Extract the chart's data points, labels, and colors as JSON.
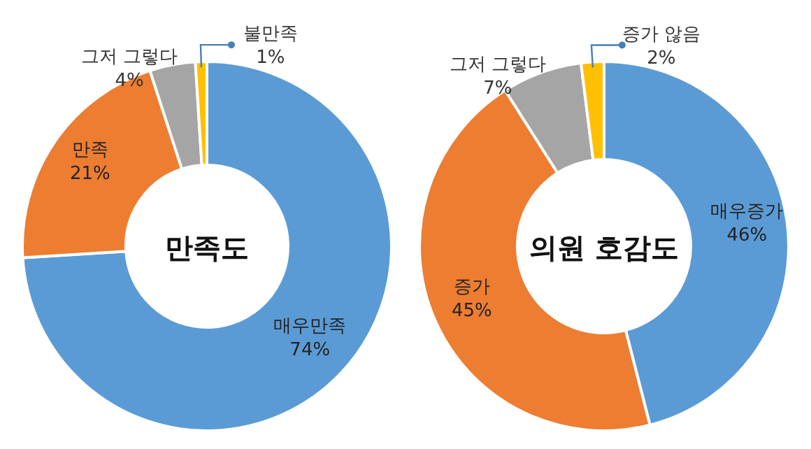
{
  "chart_data": [
    {
      "type": "donut",
      "title": "만족도",
      "categories": [
        "매우만족",
        "만족",
        "그저 그렇다",
        "불만족"
      ],
      "values": [
        74,
        21,
        4,
        1
      ],
      "value_labels": [
        "74%",
        "21%",
        "4%",
        "1%"
      ],
      "colors": [
        "#5b9bd5",
        "#ed7d31",
        "#a5a5a5",
        "#ffc000"
      ]
    },
    {
      "type": "donut",
      "title": "의원 호감도",
      "categories": [
        "매우증가",
        "증가",
        "그저 그렇다",
        "증가 않음"
      ],
      "values": [
        46,
        45,
        7,
        2
      ],
      "value_labels": [
        "46%",
        "45%",
        "7%",
        "2%"
      ],
      "colors": [
        "#5b9bd5",
        "#ed7d31",
        "#a5a5a5",
        "#ffc000"
      ]
    }
  ]
}
